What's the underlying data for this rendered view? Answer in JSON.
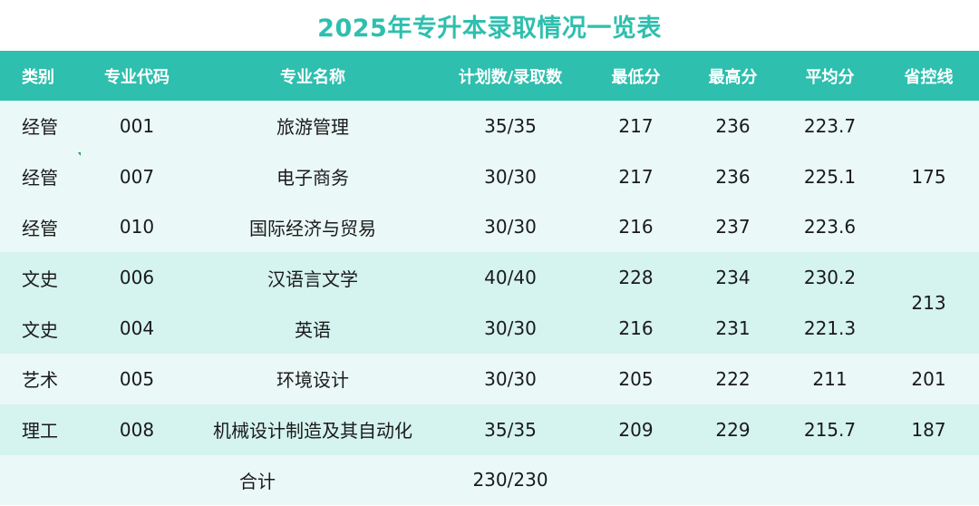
{
  "title": "2025年专升本录取情况一览表",
  "headers": [
    "类别",
    "专业代码",
    "专业名称",
    "计划数/录取数",
    "最低分",
    "最高分",
    "平均分",
    "省控线"
  ],
  "rows": [
    {
      "category": "经管",
      "code": "001",
      "major": "旅游管理",
      "plan_admit": "35/35",
      "min": "217",
      "max": "236",
      "avg": "223.7"
    },
    {
      "category": "经管",
      "code": "007",
      "major": "电子商务",
      "plan_admit": "30/30",
      "min": "217",
      "max": "236",
      "avg": "225.1"
    },
    {
      "category": "经管",
      "code": "010",
      "major": "国际经济与贸易",
      "plan_admit": "30/30",
      "min": "216",
      "max": "237",
      "avg": "223.6"
    },
    {
      "category": "文史",
      "code": "006",
      "major": "汉语言文学",
      "plan_admit": "40/40",
      "min": "228",
      "max": "234",
      "avg": "230.2"
    },
    {
      "category": "文史",
      "code": "004",
      "major": "英语",
      "plan_admit": "30/30",
      "min": "216",
      "max": "231",
      "avg": "221.3"
    },
    {
      "category": "艺术",
      "code": "005",
      "major": "环境设计",
      "plan_admit": "30/30",
      "min": "205",
      "max": "222",
      "avg": "211"
    },
    {
      "category": "理工",
      "code": "008",
      "major": "机械设计制造及其自动化",
      "plan_admit": "35/35",
      "min": "209",
      "max": "229",
      "avg": "215.7"
    }
  ],
  "control_lines": [
    "175",
    "213",
    "201",
    "187"
  ],
  "total": {
    "label": "合计",
    "value": "230/230"
  },
  "colors": {
    "header_bg": "#2ebfae",
    "title": "#2ebfae",
    "band_light": "#eaf9f7",
    "band_dark": "#d5f3ef"
  }
}
